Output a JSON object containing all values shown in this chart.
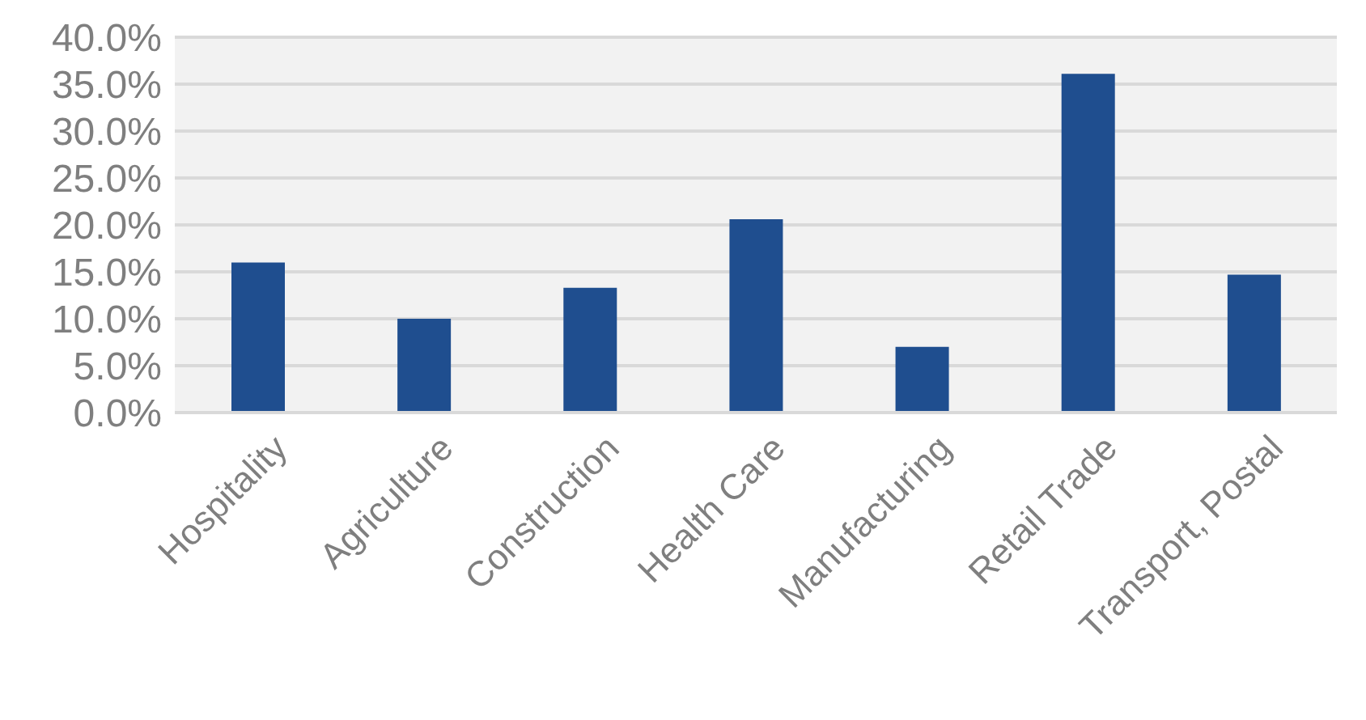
{
  "chart_data": {
    "type": "bar",
    "categories": [
      "Hospitality",
      "Agriculture",
      "Construction",
      "Health Care",
      "Manufacturing",
      "Retail Trade",
      "Transport, Postal"
    ],
    "values": [
      16.0,
      10.0,
      13.3,
      20.6,
      7.0,
      36.1,
      14.7
    ],
    "color": "#1f4e8f",
    "ylim": [
      0,
      40
    ],
    "yticks": [
      {
        "value": 0,
        "label": "0.0%"
      },
      {
        "value": 5,
        "label": "5.0%"
      },
      {
        "value": 10,
        "label": "10.0%"
      },
      {
        "value": 15,
        "label": "15.0%"
      },
      {
        "value": 20,
        "label": "20.0%"
      },
      {
        "value": 25,
        "label": "25.0%"
      },
      {
        "value": 30,
        "label": "30.0%"
      },
      {
        "value": 35,
        "label": "35.0%"
      },
      {
        "value": 40,
        "label": "40.0%"
      }
    ],
    "grid": "y"
  }
}
